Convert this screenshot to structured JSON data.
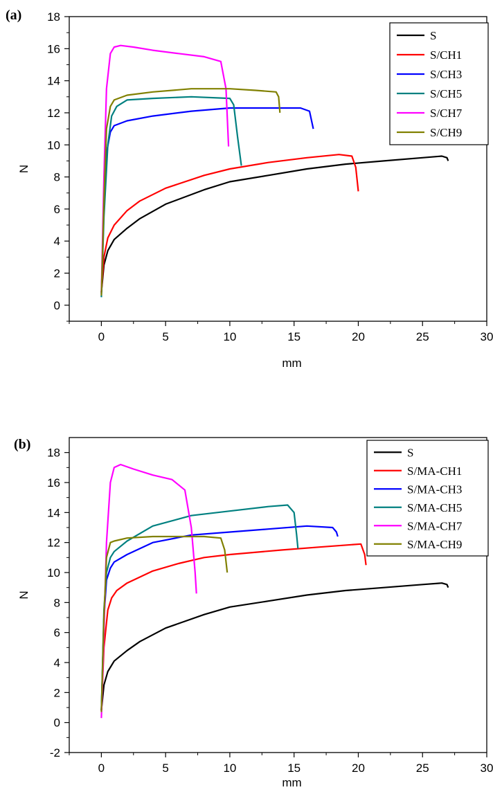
{
  "chart_data": [
    {
      "type": "line",
      "panel_label": "(a)",
      "xlabel": "mm",
      "ylabel": "N",
      "xlim": [
        -2.5,
        30
      ],
      "ylim": [
        -1,
        18
      ],
      "xticks": [
        0,
        5,
        10,
        15,
        20,
        25,
        30
      ],
      "yticks": [
        0,
        2,
        4,
        6,
        8,
        10,
        12,
        14,
        16,
        18
      ],
      "legend_position": "top-right",
      "series": [
        {
          "name": "S",
          "color": "#000000",
          "x": [
            0,
            0.2,
            0.5,
            1,
            2,
            3,
            5,
            8,
            10,
            13,
            16,
            19,
            22,
            25,
            26.5,
            26.9,
            27.0
          ],
          "y": [
            0.8,
            2.5,
            3.4,
            4.1,
            4.8,
            5.4,
            6.3,
            7.2,
            7.7,
            8.1,
            8.5,
            8.8,
            9.0,
            9.2,
            9.3,
            9.2,
            9.0
          ]
        },
        {
          "name": "S/CH1",
          "color": "#ff0000",
          "x": [
            0,
            0.2,
            0.5,
            1,
            2,
            3,
            5,
            8,
            10,
            13,
            16,
            18.5,
            19.5,
            19.8,
            20.0
          ],
          "y": [
            0.8,
            3.0,
            4.2,
            5.0,
            5.9,
            6.5,
            7.3,
            8.1,
            8.5,
            8.9,
            9.2,
            9.4,
            9.3,
            8.6,
            7.1
          ]
        },
        {
          "name": "S/CH3",
          "color": "#0000ff",
          "x": [
            0,
            0.2,
            0.4,
            0.7,
            1,
            2,
            4,
            7,
            10,
            13,
            15.5,
            16.2,
            16.5
          ],
          "y": [
            0.7,
            6.0,
            9.5,
            10.8,
            11.2,
            11.5,
            11.8,
            12.1,
            12.3,
            12.3,
            12.3,
            12.1,
            11.0
          ]
        },
        {
          "name": "S/CH5",
          "color": "#008080",
          "x": [
            0,
            0.2,
            0.5,
            0.8,
            1.2,
            2,
            4,
            7,
            10,
            10.3,
            10.6,
            10.9
          ],
          "y": [
            0.5,
            5.5,
            10.0,
            11.8,
            12.4,
            12.8,
            12.9,
            13.0,
            12.9,
            12.5,
            10.5,
            8.7
          ]
        },
        {
          "name": "S/CH7",
          "color": "#ff00ff",
          "x": [
            0,
            0.2,
            0.4,
            0.7,
            1,
            1.5,
            2.5,
            4,
            6,
            8,
            9.3,
            9.7,
            9.9
          ],
          "y": [
            0.8,
            8.0,
            13.5,
            15.7,
            16.1,
            16.2,
            16.1,
            15.9,
            15.7,
            15.5,
            15.2,
            13.5,
            9.9
          ]
        },
        {
          "name": "S/CH9",
          "color": "#808000",
          "x": [
            0,
            0.2,
            0.4,
            0.7,
            1,
            2,
            4,
            7,
            10,
            12,
            13.6,
            13.8,
            13.9
          ],
          "y": [
            0.6,
            6.5,
            11.0,
            12.4,
            12.8,
            13.1,
            13.3,
            13.5,
            13.5,
            13.4,
            13.3,
            13.0,
            12.0
          ]
        }
      ]
    },
    {
      "type": "line",
      "panel_label": "(b)",
      "xlabel": "mm",
      "ylabel": "N",
      "xlim": [
        -2.5,
        30
      ],
      "ylim": [
        -2,
        19
      ],
      "xticks": [
        0,
        5,
        10,
        15,
        20,
        25,
        30
      ],
      "yticks": [
        -2,
        0,
        2,
        4,
        6,
        8,
        10,
        12,
        14,
        16,
        18
      ],
      "legend_position": "top-right",
      "series": [
        {
          "name": "S",
          "color": "#000000",
          "x": [
            0,
            0.2,
            0.5,
            1,
            2,
            3,
            5,
            8,
            10,
            13,
            16,
            19,
            22,
            25,
            26.5,
            26.9,
            27.0
          ],
          "y": [
            0.8,
            2.5,
            3.4,
            4.1,
            4.8,
            5.4,
            6.3,
            7.2,
            7.7,
            8.1,
            8.5,
            8.8,
            9.0,
            9.2,
            9.3,
            9.2,
            9.0
          ]
        },
        {
          "name": "S/MA-CH1",
          "color": "#ff0000",
          "x": [
            0,
            0.2,
            0.5,
            0.8,
            1.2,
            2,
            4,
            6,
            8,
            10,
            14,
            17,
            20.2,
            20.5,
            20.6
          ],
          "y": [
            0.8,
            5.0,
            7.5,
            8.3,
            8.8,
            9.3,
            10.1,
            10.6,
            11.0,
            11.2,
            11.5,
            11.7,
            11.9,
            11.2,
            10.5
          ]
        },
        {
          "name": "S/MA-CH3",
          "color": "#0000ff",
          "x": [
            0,
            0.2,
            0.4,
            0.7,
            1,
            2,
            4,
            7,
            10,
            13,
            16,
            18,
            18.3,
            18.4
          ],
          "y": [
            0.8,
            7.0,
            9.5,
            10.3,
            10.7,
            11.2,
            12.0,
            12.5,
            12.7,
            12.9,
            13.1,
            13.0,
            12.7,
            12.4
          ]
        },
        {
          "name": "S/MA-CH5",
          "color": "#008080",
          "x": [
            0,
            0.2,
            0.4,
            0.7,
            1,
            2,
            4,
            7,
            10,
            13,
            14.5,
            15.0,
            15.2,
            15.3
          ],
          "y": [
            0.8,
            7.5,
            10.0,
            11.0,
            11.4,
            12.1,
            13.1,
            13.8,
            14.1,
            14.4,
            14.5,
            14.0,
            12.5,
            11.6
          ]
        },
        {
          "name": "S/MA-CH7",
          "color": "#ff00ff",
          "x": [
            0,
            0.2,
            0.4,
            0.7,
            1,
            1.5,
            2.5,
            4,
            5.5,
            6.5,
            7.0,
            7.3,
            7.4
          ],
          "y": [
            0.3,
            6.0,
            12.0,
            16.0,
            17.0,
            17.2,
            16.9,
            16.5,
            16.2,
            15.5,
            13.0,
            10.0,
            8.6
          ]
        },
        {
          "name": "S/MA-CH9",
          "color": "#808000",
          "x": [
            0,
            0.2,
            0.4,
            0.7,
            1,
            2,
            4,
            6,
            8,
            9.3,
            9.6,
            9.8
          ],
          "y": [
            0.7,
            7.0,
            11.0,
            12.0,
            12.1,
            12.3,
            12.4,
            12.4,
            12.4,
            12.3,
            11.5,
            10.0
          ]
        }
      ]
    }
  ]
}
